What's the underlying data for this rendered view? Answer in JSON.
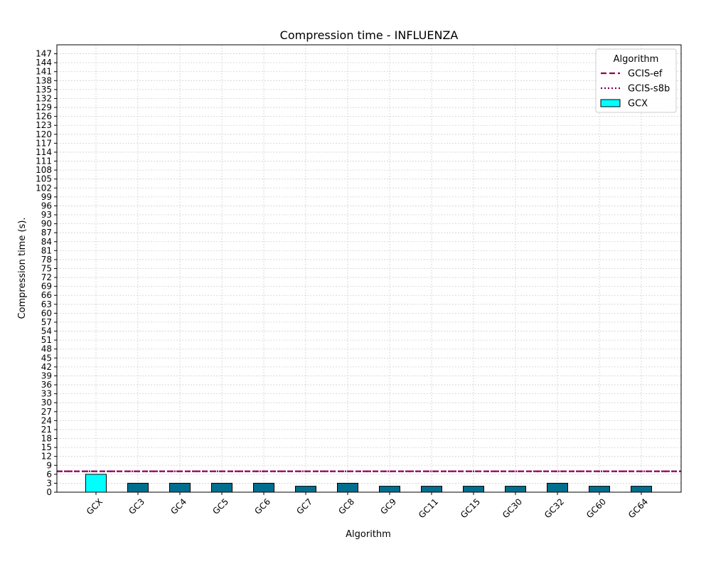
{
  "chart_data": {
    "type": "bar",
    "title": "Compression time -  INFLUENZA",
    "xlabel": "Algorithm",
    "ylabel": "Compression time (s).",
    "categories": [
      "GCX",
      "GC3",
      "GC4",
      "GC5",
      "GC6",
      "GC7",
      "GC8",
      "GC9",
      "GC11",
      "GC15",
      "GC30",
      "GC32",
      "GC60",
      "GC64"
    ],
    "values": [
      6,
      3,
      3,
      3,
      3,
      2,
      3,
      2,
      2,
      2,
      2,
      3,
      2,
      2
    ],
    "bar_colors": [
      "#00ffff",
      "#006e8e",
      "#006e8e",
      "#006e8e",
      "#006e8e",
      "#006e8e",
      "#006e8e",
      "#006e8e",
      "#006e8e",
      "#006e8e",
      "#006e8e",
      "#006e8e",
      "#006e8e",
      "#006e8e"
    ],
    "ylim": [
      0,
      150
    ],
    "ytick_step": 3,
    "ytick_max": 147,
    "grid": true,
    "hlines": [
      {
        "name": "GCIS-ef",
        "value": 7,
        "color": "#990050",
        "style": "dashed"
      },
      {
        "name": "GCIS-s8b",
        "value": 7,
        "color": "#800060",
        "style": "dotted"
      }
    ],
    "legend": {
      "title": "Algorithm",
      "placement": "top-right",
      "entries": [
        {
          "label": "GCIS-ef",
          "kind": "dashed-line",
          "color": "#990050"
        },
        {
          "label": "GCIS-s8b",
          "kind": "dotted-line",
          "color": "#800060"
        },
        {
          "label": "GCX",
          "kind": "patch",
          "color": "#00ffff"
        }
      ]
    }
  }
}
